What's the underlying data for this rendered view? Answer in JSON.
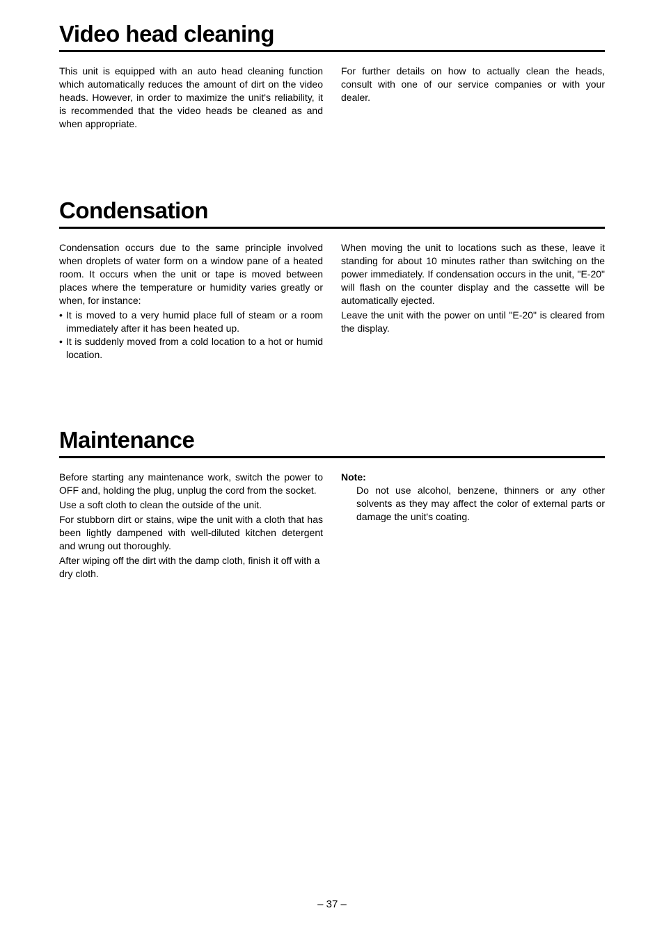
{
  "page_number": "– 37 –",
  "sections": {
    "video_head_cleaning": {
      "title": "Video head cleaning",
      "left": {
        "p1": "This unit is equipped with an auto head cleaning function which automatically reduces the amount of dirt on the video heads. However, in order to maximize the unit's reliability, it is recommended that the video heads be cleaned as and when appropriate."
      },
      "right": {
        "p1": "For further details on how to actually clean the heads, consult with one of our service companies or with your dealer."
      }
    },
    "condensation": {
      "title": "Condensation",
      "left": {
        "p1": "Condensation occurs due to the same principle involved when droplets of water form on a window pane of a heated room. It occurs when the unit or tape is moved between places where the temperature or humidity varies greatly or when, for instance:",
        "b1": "It is moved to a very humid place full of steam or a room immediately after it has been heated up.",
        "b2": "It is suddenly moved from a cold location to a hot or humid location."
      },
      "right": {
        "p1": "When moving the unit to locations such as these, leave it standing for about 10 minutes rather than switching on the power immediately. If condensation occurs in the unit, \"E-20\" will flash on the counter display and the cassette will be automatically ejected.",
        "p2": "Leave the unit with the power on until \"E-20\" is cleared from the display."
      }
    },
    "maintenance": {
      "title": "Maintenance",
      "left": {
        "p1": "Before starting any maintenance work, switch the power to OFF and, holding the plug, unplug the cord from the socket.",
        "p2": "Use a soft cloth to clean the outside of the unit.",
        "p3": "For stubborn dirt or stains, wipe the unit with a cloth that has been lightly dampened with well-diluted kitchen detergent and wrung out thoroughly.",
        "p4": "After wiping off the dirt with the damp cloth, finish it off with a dry cloth."
      },
      "right": {
        "note_label": "Note:",
        "note_body": "Do not use alcohol, benzene, thinners or any other solvents as they may affect the color of external parts or damage the unit's coating."
      }
    }
  }
}
